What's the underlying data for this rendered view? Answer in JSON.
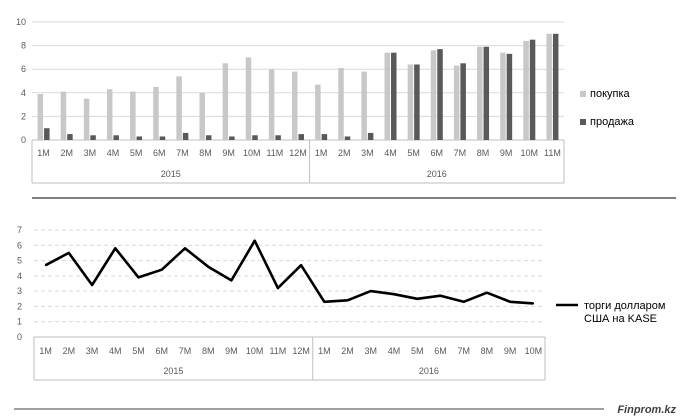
{
  "chart_data": [
    {
      "type": "bar",
      "categories": [
        "1M",
        "2M",
        "3M",
        "4M",
        "5M",
        "6M",
        "7M",
        "8M",
        "9M",
        "10M",
        "11M",
        "12M",
        "1M",
        "2M",
        "3M",
        "4M",
        "5M",
        "6M",
        "7M",
        "8M",
        "9M",
        "10M",
        "11M"
      ],
      "groups": [
        {
          "label": "2015",
          "count": 12
        },
        {
          "label": "2016",
          "count": 11
        }
      ],
      "series": [
        {
          "name": "покупка",
          "color": "#c8c8c8",
          "values": [
            3.9,
            4.1,
            3.5,
            4.3,
            4.1,
            4.5,
            5.4,
            4.0,
            6.5,
            7.0,
            6.0,
            5.8,
            4.7,
            6.1,
            5.8,
            7.4,
            6.4,
            7.6,
            6.3,
            7.9,
            7.4,
            8.4,
            9.0
          ]
        },
        {
          "name": "продажа",
          "color": "#595959",
          "values": [
            1.0,
            0.5,
            0.4,
            0.4,
            0.3,
            0.3,
            0.6,
            0.4,
            0.3,
            0.4,
            0.4,
            0.5,
            0.5,
            0.3,
            0.6,
            7.4,
            6.4,
            7.7,
            6.5,
            7.9,
            7.3,
            8.5,
            9.0
          ]
        }
      ],
      "ylim": [
        0,
        10
      ],
      "yticks": [
        "0",
        "2",
        "4",
        "6",
        "8",
        "10"
      ],
      "grid": true,
      "legend": "right"
    },
    {
      "type": "line",
      "categories": [
        "1M",
        "2M",
        "3M",
        "4M",
        "5M",
        "6M",
        "7M",
        "8M",
        "9M",
        "10M",
        "11M",
        "12M",
        "1M",
        "2M",
        "3M",
        "4M",
        "5M",
        "6M",
        "7M",
        "8M",
        "9M",
        "10M"
      ],
      "groups": [
        {
          "label": "2015",
          "count": 12
        },
        {
          "label": "2016",
          "count": 10
        }
      ],
      "series": [
        {
          "name": "торги долларом США на KASE",
          "color": "#000000",
          "values": [
            4.7,
            5.5,
            3.4,
            5.8,
            3.9,
            4.4,
            5.8,
            4.6,
            3.7,
            6.3,
            3.2,
            4.7,
            2.3,
            2.4,
            3.0,
            2.8,
            2.5,
            2.7,
            2.3,
            2.9,
            2.3,
            2.2
          ]
        }
      ],
      "ylim": [
        0,
        7
      ],
      "yticks": [
        "0",
        "1",
        "2",
        "3",
        "4",
        "5",
        "6",
        "7"
      ],
      "grid": true,
      "legend": "right"
    }
  ],
  "footer": {
    "brand": "Finprom.kz"
  }
}
